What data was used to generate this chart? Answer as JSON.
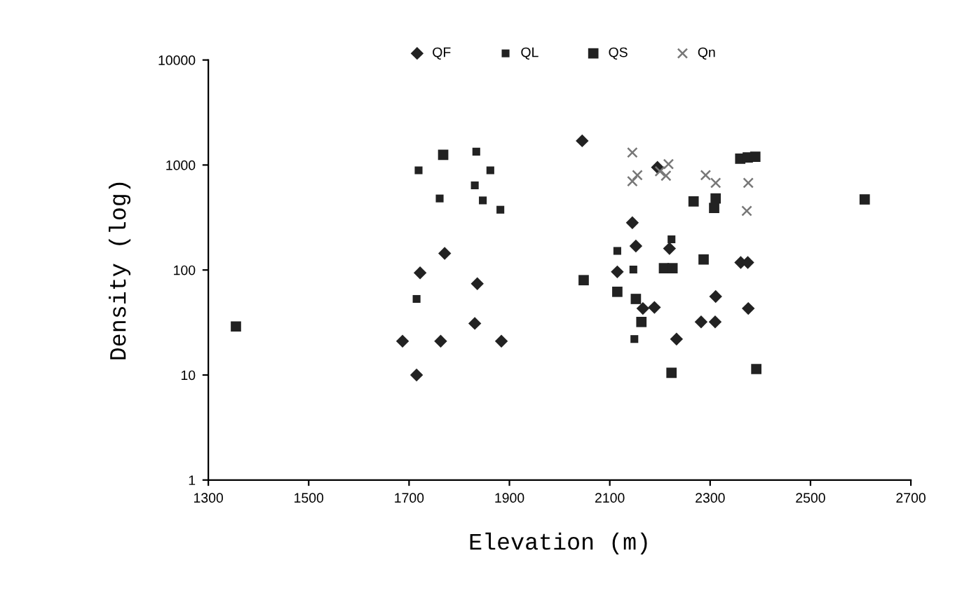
{
  "chart_data": {
    "type": "scatter",
    "xlabel": "Elevation (m)",
    "ylabel": "Density (log)",
    "log": "y",
    "xlim": [
      1300,
      2700
    ],
    "xticks": [
      1300,
      1500,
      1700,
      1900,
      2100,
      2300,
      2500,
      2700
    ],
    "ylim": [
      1,
      10000
    ],
    "yticks": [
      1,
      10,
      100,
      1000,
      10000
    ],
    "grid": false,
    "legend": "top",
    "series": [
      {
        "name": "QF",
        "color": "#222222",
        "marker": "diamond",
        "x": [
          1771,
          1722,
          1836,
          1831,
          1687,
          1763,
          1884,
          1715,
          2045,
          2195,
          2145,
          2152,
          2219,
          2115,
          2361,
          2375,
          2311,
          2376,
          2189,
          2166,
          2282,
          2310,
          2233
        ],
        "values": [
          144,
          94,
          74,
          31,
          21,
          21,
          21,
          10,
          1700,
          950,
          282,
          169,
          160,
          96,
          118,
          118,
          56,
          43,
          44,
          43,
          32,
          32,
          22
        ]
      },
      {
        "name": "QL",
        "color": "#222222",
        "marker": "square",
        "x": [
          1719,
          1862,
          1831,
          1761,
          1847,
          1882,
          1715,
          1834,
          2149,
          2223,
          2147,
          2115
        ],
        "values": [
          890,
          890,
          640,
          480,
          460,
          375,
          53,
          1340,
          22,
          196,
          101,
          152
        ]
      },
      {
        "name": "QS",
        "color": "#222222",
        "marker": "square",
        "x": [
          1355,
          1768,
          2048,
          2360,
          2375,
          2390,
          2608,
          2267,
          2311,
          2308,
          2287,
          2115,
          2152,
          2163,
          2223,
          2392,
          2208,
          2225
        ],
        "values": [
          29,
          1250,
          80,
          1150,
          1180,
          1200,
          470,
          450,
          480,
          390,
          126,
          62,
          53,
          32,
          10.5,
          11.4,
          104,
          104
        ]
      },
      {
        "name": "Qn",
        "color": "#777777",
        "marker": "cross",
        "x": [
          2145,
          2145,
          2155,
          2217,
          2212,
          2200,
          2291,
          2311,
          2376,
          2373
        ],
        "values": [
          1315,
          700,
          800,
          1020,
          790,
          870,
          800,
          675,
          675,
          365
        ]
      }
    ]
  }
}
